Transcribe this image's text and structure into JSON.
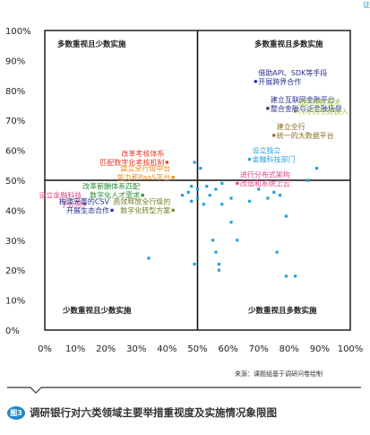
{
  "corner_text": "证",
  "chart_data": {
    "type": "scatter",
    "xlim": [
      0,
      100
    ],
    "ylim": [
      0,
      100
    ],
    "x_ticks": [
      "0%",
      "10%",
      "20%",
      "30%",
      "40%",
      "50%",
      "60%",
      "70%",
      "80%",
      "90%",
      "100%"
    ],
    "y_ticks": [
      "0%",
      "10%",
      "20%",
      "30%",
      "40%",
      "50%",
      "60%",
      "70%",
      "80%",
      "90%",
      "100%"
    ],
    "grid": false,
    "divider": {
      "x": 50,
      "y": 50
    },
    "quadrant_labels": {
      "top_left": "多数重视且少数实施",
      "top_right": "多数重视且多数实施",
      "bottom_left": "少数重视且少数实施",
      "bottom_right": "少数重视且多数实施"
    },
    "points": [
      {
        "x": 69,
        "y": 83,
        "color": "#2b2f8c",
        "label": [
          "借助API、SDK等手段",
          "开展跨界合作"
        ]
      },
      {
        "x": 73,
        "y": 74,
        "color": "#2b2f8c",
        "label": [
          "建立互联网金融平台",
          "整合金融与泛金融场景"
        ]
      },
      {
        "x": 82,
        "y": 73,
        "color": "#9cc93f",
        "label": [
          "加大创新技术",
          "人才的引进投入"
        ]
      },
      {
        "x": 75,
        "y": 65,
        "color": "#8e6e1c",
        "label": [
          "建立全行",
          "统一的大数据平台"
        ]
      },
      {
        "x": 67,
        "y": 57,
        "color": "#2a9fd6",
        "label": [
          "设立独立",
          "金融科技部门"
        ]
      },
      {
        "x": 63,
        "y": 49,
        "color": "#e0468a",
        "label": [
          "进行分布式架构",
          "改造和系统上云"
        ]
      },
      {
        "x": 40,
        "y": 56,
        "color": "#e63c28",
        "label": [
          "改革考核体系",
          "匹配数字化考核机制"
        ]
      },
      {
        "x": 42,
        "y": 51,
        "color": "#f08c1e",
        "label": [
          "建立全行级中台",
          "能力和PaaS平台"
        ]
      },
      {
        "x": 32,
        "y": 45,
        "color": "#2e8b3a",
        "label": [
          "改革薪酬体系匹配",
          "数字化人才需求"
        ]
      },
      {
        "x": 42,
        "y": 40,
        "color": "#7a7f2b",
        "label": [
          "高效释放全行级的",
          "数字化转型方案"
        ]
      },
      {
        "x": 13,
        "y": 42,
        "color": "#e0468a",
        "label": [
          "设立金融科技",
          "子公司"
        ]
      },
      {
        "x": 22,
        "y": 40,
        "color": "#2b2f8c",
        "label": [
          "构建完善的CSV",
          "开展生态合作"
        ]
      },
      {
        "x": 49,
        "y": 56,
        "color": "#2a9fd6"
      },
      {
        "x": 51,
        "y": 54,
        "color": "#2a9fd6"
      },
      {
        "x": 48,
        "y": 48,
        "color": "#2a9fd6"
      },
      {
        "x": 50,
        "y": 47,
        "color": "#2a9fd6"
      },
      {
        "x": 53,
        "y": 48,
        "color": "#2a9fd6"
      },
      {
        "x": 56,
        "y": 47,
        "color": "#2a9fd6"
      },
      {
        "x": 58,
        "y": 49,
        "color": "#2a9fd6"
      },
      {
        "x": 47,
        "y": 46,
        "color": "#2a9fd6"
      },
      {
        "x": 45,
        "y": 45,
        "color": "#2a9fd6"
      },
      {
        "x": 50,
        "y": 44,
        "color": "#2a9fd6"
      },
      {
        "x": 48,
        "y": 43,
        "color": "#2a9fd6"
      },
      {
        "x": 54,
        "y": 45,
        "color": "#2a9fd6"
      },
      {
        "x": 52,
        "y": 42,
        "color": "#2a9fd6"
      },
      {
        "x": 58,
        "y": 42,
        "color": "#2a9fd6"
      },
      {
        "x": 61,
        "y": 44,
        "color": "#2a9fd6"
      },
      {
        "x": 67,
        "y": 43,
        "color": "#2a9fd6"
      },
      {
        "x": 73,
        "y": 44,
        "color": "#2a9fd6"
      },
      {
        "x": 75,
        "y": 46,
        "color": "#2a9fd6"
      },
      {
        "x": 70,
        "y": 47,
        "color": "#2a9fd6"
      },
      {
        "x": 77,
        "y": 45,
        "color": "#2a9fd6"
      },
      {
        "x": 79,
        "y": 38,
        "color": "#2a9fd6"
      },
      {
        "x": 55,
        "y": 30,
        "color": "#2a9fd6"
      },
      {
        "x": 63,
        "y": 30,
        "color": "#2a9fd6"
      },
      {
        "x": 56,
        "y": 26,
        "color": "#2a9fd6"
      },
      {
        "x": 57,
        "y": 22,
        "color": "#2a9fd6"
      },
      {
        "x": 49,
        "y": 22,
        "color": "#2a9fd6"
      },
      {
        "x": 57,
        "y": 20,
        "color": "#2a9fd6"
      },
      {
        "x": 34,
        "y": 24,
        "color": "#2a9fd6"
      },
      {
        "x": 76,
        "y": 26,
        "color": "#2a9fd6"
      },
      {
        "x": 79,
        "y": 18,
        "color": "#2a9fd6"
      },
      {
        "x": 82,
        "y": 18,
        "color": "#2a9fd6"
      },
      {
        "x": 61,
        "y": 36,
        "color": "#2a9fd6"
      },
      {
        "x": 89,
        "y": 54,
        "color": "#2a9fd6"
      },
      {
        "x": 86,
        "y": 50,
        "color": "#2a9fd6"
      }
    ]
  },
  "source": "来源：课题组基于调研问卷绘制",
  "caption": {
    "badge": "图3",
    "title": "调研银行对六类领域主要举措重视度及实施情况象限图"
  }
}
